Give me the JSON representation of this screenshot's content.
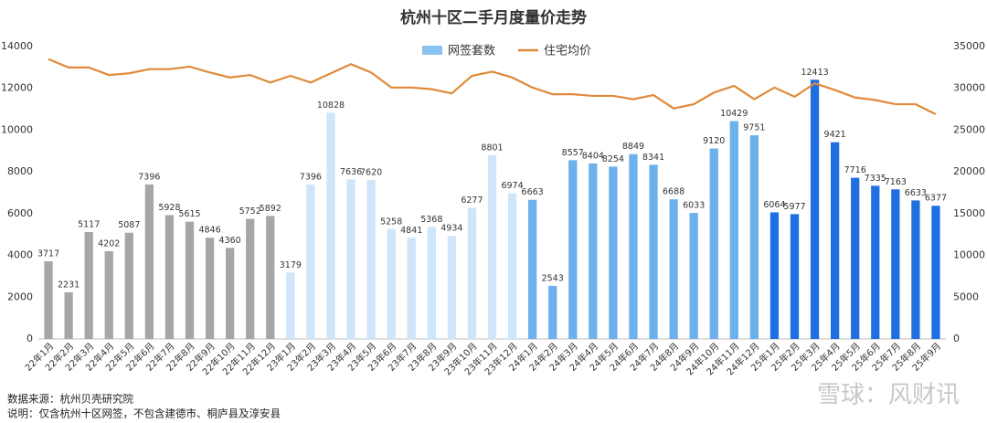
{
  "chart_data": {
    "type": "bar_line",
    "title": "杭州十区二手月度量价走势",
    "categories": [
      "22年1月",
      "22年2月",
      "22年3月",
      "22年4月",
      "22年5月",
      "22年6月",
      "22年7月",
      "22年8月",
      "22年9月",
      "22年10月",
      "22年11月",
      "22年12月",
      "23年1月",
      "23年2月",
      "23年3月",
      "23年4月",
      "23年5月",
      "23年6月",
      "23年7月",
      "23年8月",
      "23年9月",
      "23年10月",
      "23年11月",
      "23年12月",
      "24年1月",
      "24年2月",
      "24年3月",
      "24年4月",
      "24年5月",
      "24年6月",
      "24年7月",
      "24年8月",
      "24年9月",
      "24年10月",
      "24年11月",
      "24年12月",
      "25年1月",
      "25年2月",
      "25年3月",
      "25年4月",
      "25年5月",
      "25年6月",
      "25年7月",
      "25年8月",
      "25年9月"
    ],
    "series": [
      {
        "name": "网签套数",
        "type": "bar",
        "color": "#8cc2f0",
        "colors": [
          "#a6a6a6",
          "#a6a6a6",
          "#a6a6a6",
          "#a6a6a6",
          "#a6a6a6",
          "#a6a6a6",
          "#a6a6a6",
          "#a6a6a6",
          "#a6a6a6",
          "#a6a6a6",
          "#a6a6a6",
          "#a6a6a6",
          "#cfe5f9",
          "#cfe5f9",
          "#cfe5f9",
          "#cfe5f9",
          "#cfe5f9",
          "#cfe5f9",
          "#cfe5f9",
          "#cfe5f9",
          "#cfe5f9",
          "#cfe5f9",
          "#cfe5f9",
          "#cfe5f9",
          "#6cb0ec",
          "#6cb0ec",
          "#6cb0ec",
          "#6cb0ec",
          "#6cb0ec",
          "#6cb0ec",
          "#6cb0ec",
          "#6cb0ec",
          "#6cb0ec",
          "#6cb0ec",
          "#6cb0ec",
          "#6cb0ec",
          "#1f6fe0",
          "#1f6fe0",
          "#1f6fe0",
          "#1f6fe0",
          "#1f6fe0",
          "#1f6fe0",
          "#1f6fe0",
          "#1f6fe0",
          "#1f6fe0"
        ],
        "values": [
          3717,
          2231,
          5117,
          4202,
          5087,
          7396,
          5928,
          5615,
          4846,
          4360,
          5752,
          5892,
          3179,
          7396,
          10828,
          7636,
          7620,
          5258,
          4841,
          5368,
          4934,
          6277,
          8801,
          6974,
          6663,
          2543,
          8557,
          8404,
          8254,
          8849,
          8341,
          6688,
          6033,
          9120,
          10429,
          9751,
          6064,
          5977,
          12413,
          9421,
          7716,
          7335,
          7163,
          6633,
          6377
        ]
      },
      {
        "name": "住宅均价",
        "type": "line",
        "axis": "y2",
        "color": "#e08a3a",
        "values": [
          33500,
          32500,
          32500,
          31600,
          31800,
          32300,
          32300,
          32600,
          31900,
          31300,
          31600,
          30700,
          31500,
          30700,
          31800,
          32900,
          31900,
          30100,
          30100,
          29900,
          29400,
          31500,
          32000,
          31300,
          30100,
          29300,
          29300,
          29100,
          29100,
          28700,
          29200,
          27600,
          28100,
          29500,
          30300,
          28700,
          30100,
          29000,
          30600,
          29800,
          28900,
          28600,
          28100,
          28100,
          26900
        ]
      }
    ],
    "ylim": [
      0,
      14000
    ],
    "yticks": [
      0,
      2000,
      4000,
      6000,
      8000,
      10000,
      12000,
      14000
    ],
    "y2lim": [
      0,
      35000
    ],
    "y2ticks": [
      0,
      5000,
      10000,
      15000,
      20000,
      25000,
      30000,
      35000
    ],
    "legend": "top",
    "notes": [
      "数据来源：杭州贝壳研究院",
      "说明：仅含杭州十区网签，不包含建德市、桐庐县及淳安县"
    ],
    "watermark": "雪球：风财讯"
  }
}
